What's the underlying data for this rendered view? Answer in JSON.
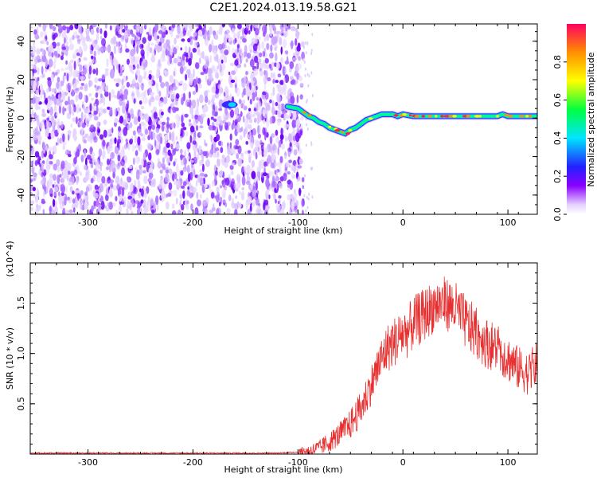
{
  "title": "C2E1.2024.013.19.58.G21",
  "chart_data": [
    {
      "type": "heatmap",
      "xlabel": "Height of straight line (km)",
      "ylabel": "Frequency (Hz)",
      "xlim": [
        -355,
        128
      ],
      "ylim": [
        -50,
        49
      ],
      "x_ticks": [
        -300,
        -200,
        -100,
        0,
        100
      ],
      "y_ticks": [
        -40,
        -20,
        0,
        20,
        40
      ],
      "noise_region_x": [
        -355,
        -95
      ],
      "ridge": {
        "name": "",
        "x": [
          -110,
          -100,
          -95,
          -90,
          -85,
          -80,
          -75,
          -70,
          -65,
          -60,
          -55,
          -50,
          -45,
          -40,
          -35,
          -30,
          -25,
          -20,
          -15,
          -10,
          -5,
          0,
          10,
          20,
          30,
          40,
          50,
          60,
          70,
          80,
          90,
          95,
          100,
          110,
          128
        ],
        "y": [
          6,
          5,
          3,
          1,
          0,
          -2,
          -3,
          -5,
          -6,
          -7,
          -8,
          -6,
          -5,
          -3,
          -1,
          0,
          1,
          2,
          2,
          2,
          1,
          2,
          1,
          1,
          1,
          1,
          1,
          1,
          1,
          1,
          1,
          2,
          1,
          1,
          1
        ]
      },
      "blob": {
        "x": -165,
        "y": 7
      },
      "colorbar": {
        "label": "Normalized spectral amplitude",
        "range": [
          0,
          1
        ],
        "ticks": [
          0.0,
          0.2,
          0.4,
          0.6,
          0.8
        ],
        "tick_labels": [
          "0.0",
          "0.2",
          "0.4",
          "0.6",
          "0.8"
        ]
      }
    },
    {
      "type": "line",
      "xlabel": "Height of straight line (km)",
      "ylabel": "SNR (10 * v/v)",
      "y_multiplier": "(x10^4)",
      "xlim": [
        -355,
        128
      ],
      "ylim": [
        0,
        1.9
      ],
      "x_ticks": [
        -300,
        -200,
        -100,
        0,
        100
      ],
      "y_ticks": [
        0.5,
        1.0,
        1.5
      ],
      "y_tick_labels": [
        "0.5",
        "1.0",
        "1.5"
      ],
      "series": [
        {
          "name": "",
          "color": "#e83030",
          "x": [
            -355,
            -300,
            -250,
            -200,
            -150,
            -120,
            -100,
            -90,
            -80,
            -70,
            -60,
            -50,
            -40,
            -30,
            -20,
            -15,
            -10,
            -5,
            0,
            5,
            10,
            20,
            30,
            40,
            50,
            60,
            70,
            80,
            90,
            100,
            110,
            120,
            128
          ],
          "y": [
            0.01,
            0.01,
            0.01,
            0.01,
            0.01,
            0.01,
            0.02,
            0.03,
            0.06,
            0.12,
            0.2,
            0.3,
            0.45,
            0.7,
            0.95,
            1.05,
            1.1,
            1.15,
            1.2,
            1.22,
            1.3,
            1.38,
            1.48,
            1.5,
            1.45,
            1.3,
            1.2,
            1.1,
            1.05,
            0.95,
            0.85,
            0.8,
            0.9
          ]
        }
      ]
    }
  ]
}
